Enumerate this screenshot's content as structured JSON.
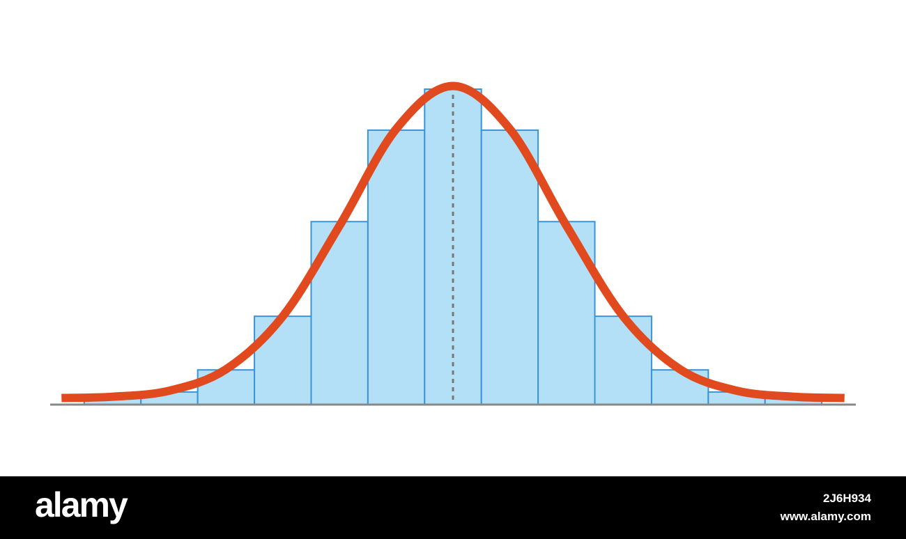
{
  "chart_data": {
    "type": "histogram",
    "bins": [
      -6.5,
      -5.5,
      -4.5,
      -3.5,
      -2.5,
      -1.5,
      -0.5,
      0.5,
      1.5,
      2.5,
      3.5,
      4.5,
      5.5,
      6.5
    ],
    "values": [
      2,
      4,
      11,
      28,
      58,
      87,
      100,
      87,
      58,
      28,
      11,
      4,
      2
    ],
    "color": "#b3e0f7",
    "edge_color": "#3a93d6",
    "curve": {
      "x": [
        -6.9,
        -6,
        -5,
        -4,
        -3,
        -2,
        -1,
        0,
        1,
        2,
        3,
        4,
        5,
        6,
        6.9
      ],
      "values": [
        2.1,
        2.5,
        4.4,
        11.2,
        28,
        56.7,
        87.4,
        101,
        87.4,
        56.7,
        28,
        11.2,
        4.4,
        2.5,
        2.1
      ],
      "color": "#e04a1e"
    },
    "mean": 0,
    "xlim": [
      -7.1,
      7.1
    ],
    "ylim": [
      0,
      100
    ]
  },
  "footer": {
    "logo": "alamy",
    "id": "2J6H934",
    "url": "www.alamy.com"
  }
}
